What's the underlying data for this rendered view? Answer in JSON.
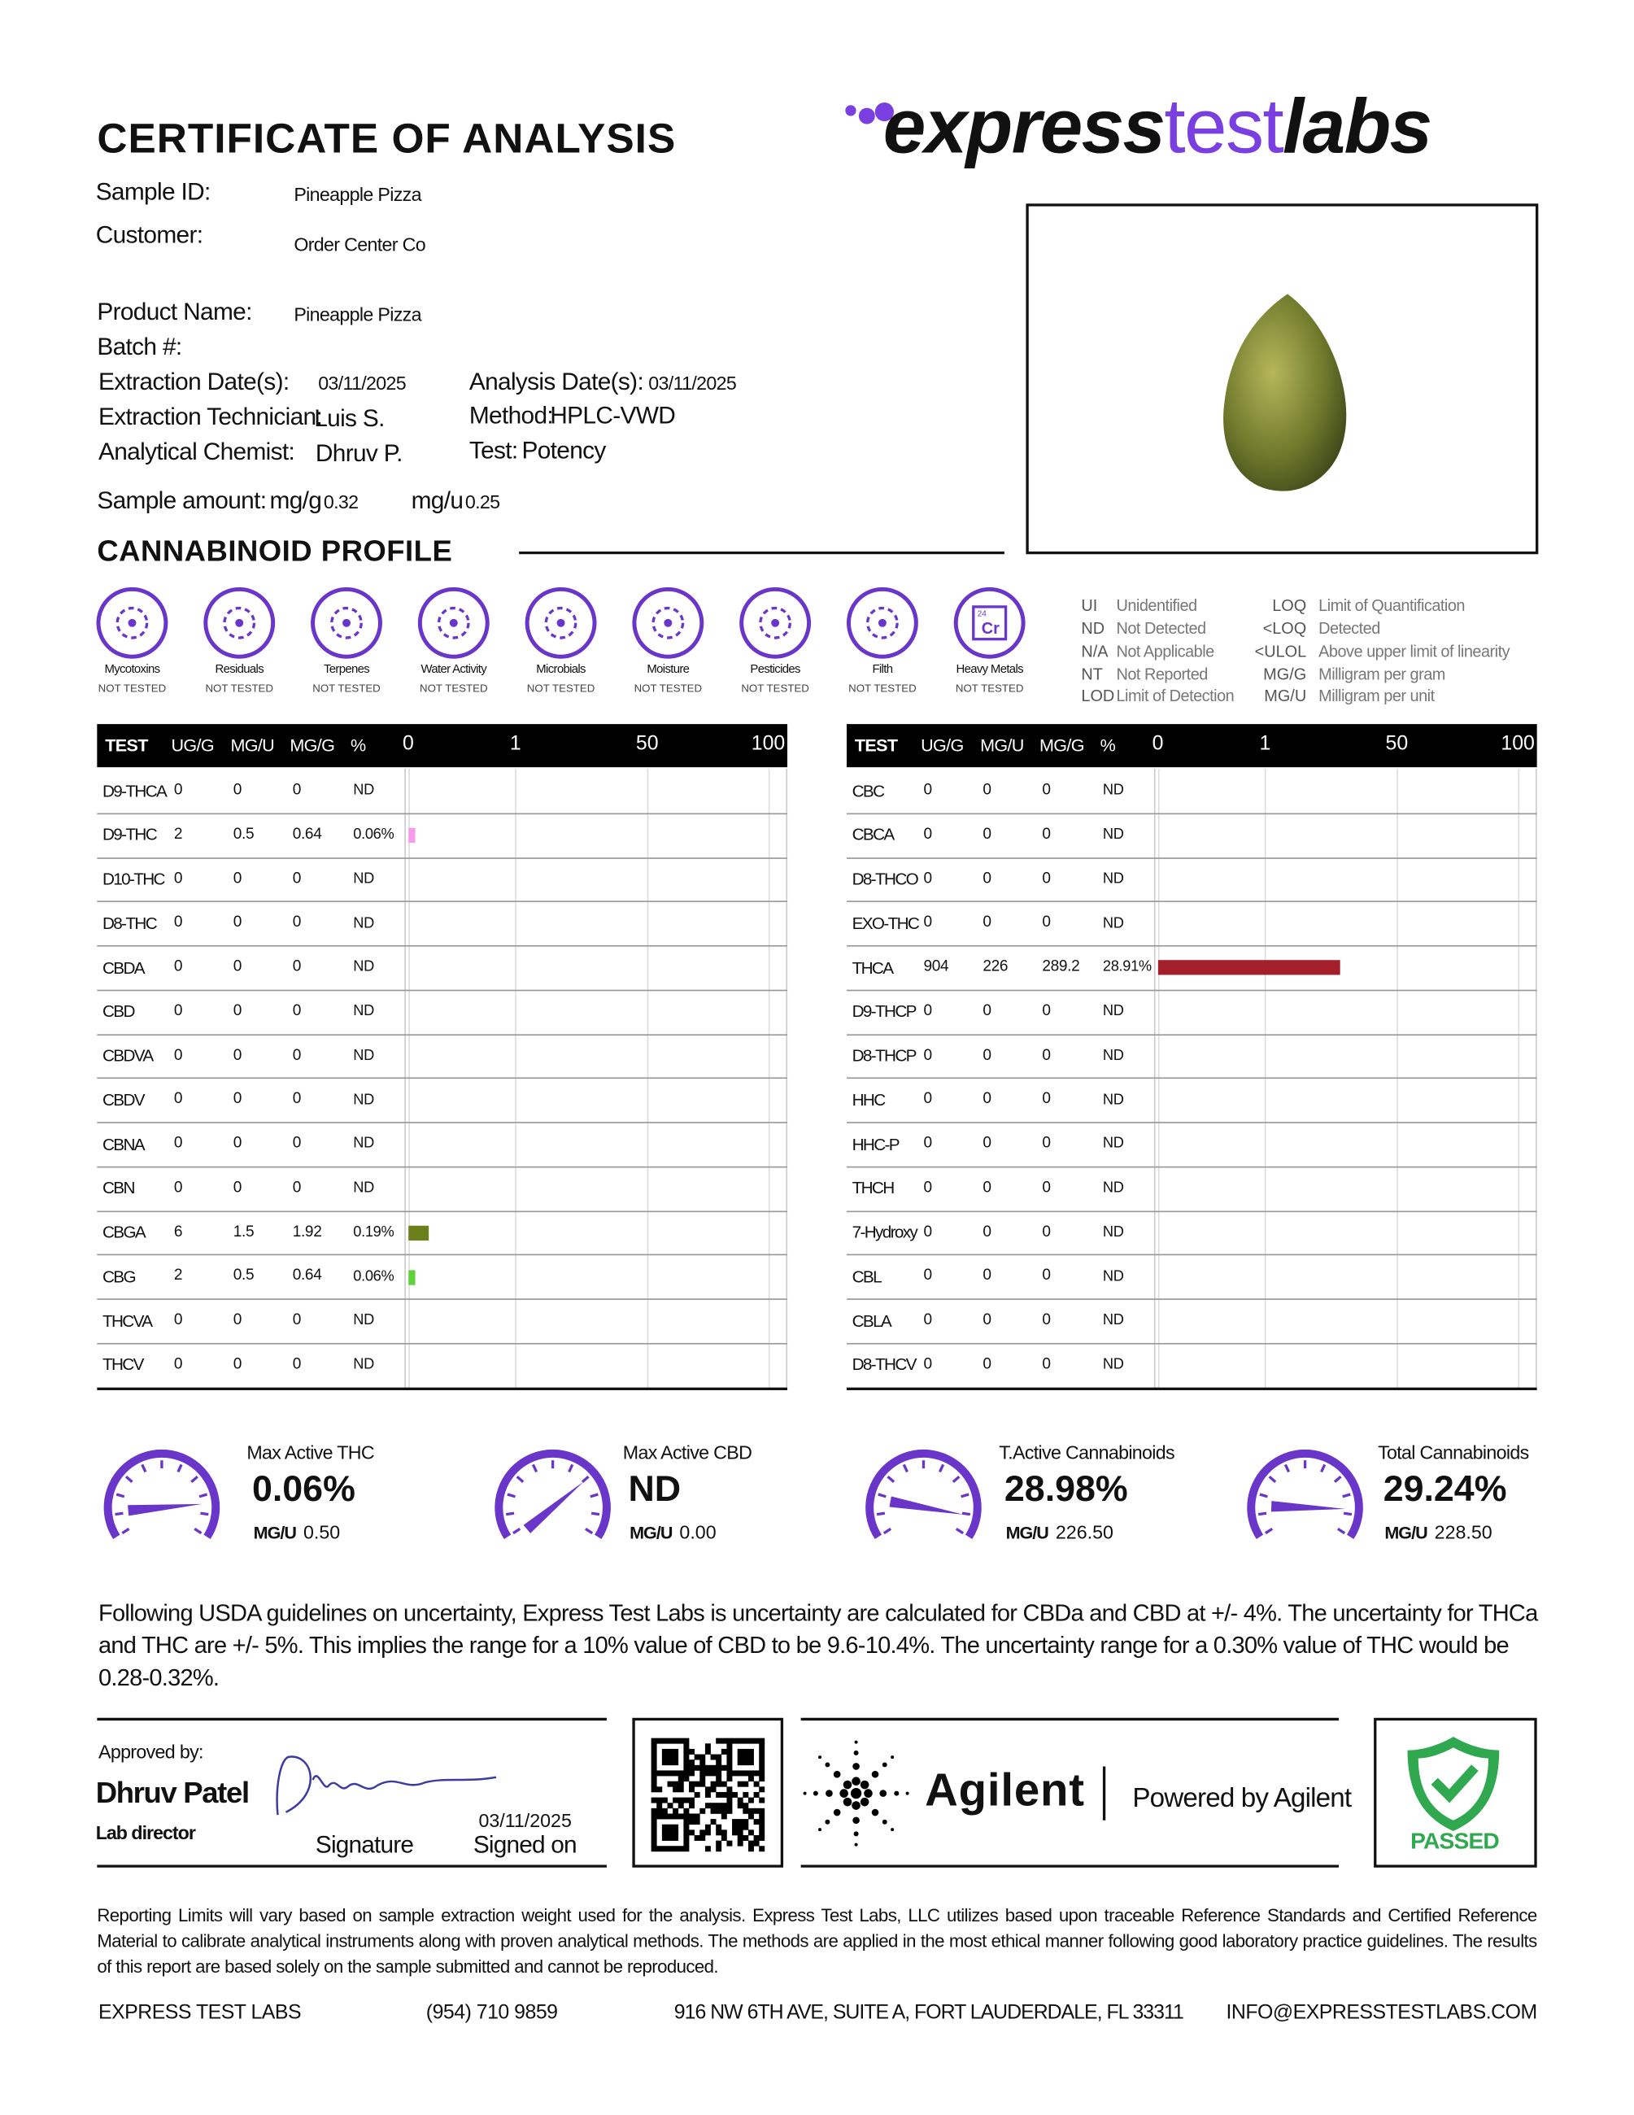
{
  "header": {
    "title": "CERTIFICATE OF ANALYSIS",
    "logo": {
      "part1": "express",
      "part2": "test",
      "part3": "labs"
    }
  },
  "sample": {
    "sample_id": {
      "label": "Sample ID:",
      "value": "Pineapple Pizza"
    },
    "customer": {
      "label": "Customer:",
      "value": "Order Center Co"
    },
    "product_name": {
      "label": "Product Name:",
      "value": "Pineapple Pizza"
    },
    "batch": {
      "label": "Batch #:"
    },
    "extraction_date": {
      "label": "Extraction Date(s):",
      "value": "03/11/2025"
    },
    "analysis_date": {
      "label": "Analysis Date(s):",
      "value": "03/11/2025"
    },
    "technician": {
      "label": "Extraction Technician:",
      "value": "Luis S."
    },
    "method": {
      "label": "Method:",
      "value": "HPLC-VWD"
    },
    "chemist": {
      "label": "Analytical Chemist:",
      "value": "Dhruv P."
    },
    "test": {
      "label": "Test:",
      "value": "Potency"
    },
    "amount": {
      "label": "Sample amount:",
      "mg_g_label": "mg/g",
      "mg_g": 0.32,
      "mg_u_label": "mg/u",
      "mg_u": 0.25
    }
  },
  "profile_title": "CANNABINOID PROFILE",
  "tests": [
    {
      "name": "Mycotoxins",
      "status": "NOT TESTED"
    },
    {
      "name": "Residuals",
      "status": "NOT TESTED"
    },
    {
      "name": "Terpenes",
      "status": "NOT TESTED"
    },
    {
      "name": "Water Activity",
      "status": "NOT TESTED"
    },
    {
      "name": "Microbials",
      "status": "NOT TESTED"
    },
    {
      "name": "Moisture",
      "status": "NOT TESTED"
    },
    {
      "name": "Pesticides",
      "status": "NOT TESTED"
    },
    {
      "name": "Filth",
      "status": "NOT TESTED"
    },
    {
      "name": "Heavy Metals",
      "status": "NOT TESTED",
      "symbol": "Cr",
      "number": "24"
    }
  ],
  "abbreviations": [
    [
      {
        "code": "UI",
        "meaning": "Unidentified"
      },
      {
        "code": "ND",
        "meaning": "Not Detected"
      },
      {
        "code": "N/A",
        "meaning": "Not Applicable"
      },
      {
        "code": "NT",
        "meaning": "Not Reported"
      },
      {
        "code": "LOD",
        "meaning": "Limit of Detection"
      }
    ],
    [
      {
        "code": "LOQ",
        "meaning": "Limit of Quantification"
      },
      {
        "code": "<LOQ",
        "meaning": "Detected"
      },
      {
        "code": "<ULOL",
        "meaning": "Above upper limit of linearity"
      },
      {
        "code": "MG/G",
        "meaning": "Milligram per gram"
      },
      {
        "code": "MG/U",
        "meaning": "Milligram per unit"
      }
    ]
  ],
  "tables": [
    {
      "columns": [
        "TEST",
        "UG/G",
        "MG/U",
        "MG/G",
        "%"
      ],
      "scale": [
        0,
        1,
        50,
        100
      ],
      "rows": [
        {
          "test": "D9-THCA",
          "ug_g": 0,
          "mg_u": 0,
          "mg_g": 0,
          "percent_label": "ND"
        },
        {
          "test": "D9-THC",
          "ug_g": 2,
          "mg_u": 0.5,
          "mg_g": 0.64,
          "percent": 0.06,
          "percent_label": "0.06%",
          "bar_color": "#f59bea"
        },
        {
          "test": "D10-THC",
          "ug_g": 0,
          "mg_u": 0,
          "mg_g": 0,
          "percent_label": "ND"
        },
        {
          "test": "D8-THC",
          "ug_g": 0,
          "mg_u": 0,
          "mg_g": 0,
          "percent_label": "ND"
        },
        {
          "test": "CBDA",
          "ug_g": 0,
          "mg_u": 0,
          "mg_g": 0,
          "percent_label": "ND"
        },
        {
          "test": "CBD",
          "ug_g": 0,
          "mg_u": 0,
          "mg_g": 0,
          "percent_label": "ND"
        },
        {
          "test": "CBDVA",
          "ug_g": 0,
          "mg_u": 0,
          "mg_g": 0,
          "percent_label": "ND"
        },
        {
          "test": "CBDV",
          "ug_g": 0,
          "mg_u": 0,
          "mg_g": 0,
          "percent_label": "ND"
        },
        {
          "test": "CBNA",
          "ug_g": 0,
          "mg_u": 0,
          "mg_g": 0,
          "percent_label": "ND"
        },
        {
          "test": "CBN",
          "ug_g": 0,
          "mg_u": 0,
          "mg_g": 0,
          "percent_label": "ND"
        },
        {
          "test": "CBGA",
          "ug_g": 6,
          "mg_u": 1.5,
          "mg_g": 1.92,
          "percent": 0.19,
          "percent_label": "0.19%",
          "bar_color": "#6b7f1a"
        },
        {
          "test": "CBG",
          "ug_g": 2,
          "mg_u": 0.5,
          "mg_g": 0.64,
          "percent": 0.06,
          "percent_label": "0.06%",
          "bar_color": "#5fd13a"
        },
        {
          "test": "THCVA",
          "ug_g": 0,
          "mg_u": 0,
          "mg_g": 0,
          "percent_label": "ND"
        },
        {
          "test": "THCV",
          "ug_g": 0,
          "mg_u": 0,
          "mg_g": 0,
          "percent_label": "ND"
        }
      ]
    },
    {
      "columns": [
        "TEST",
        "UG/G",
        "MG/U",
        "MG/G",
        "%"
      ],
      "scale": [
        0,
        1,
        50,
        100
      ],
      "rows": [
        {
          "test": "CBC",
          "ug_g": 0,
          "mg_u": 0,
          "mg_g": 0,
          "percent_label": "ND"
        },
        {
          "test": "CBCA",
          "ug_g": 0,
          "mg_u": 0,
          "mg_g": 0,
          "percent_label": "ND"
        },
        {
          "test": "D8-THCO",
          "ug_g": 0,
          "mg_u": 0,
          "mg_g": 0,
          "percent_label": "ND"
        },
        {
          "test": "EXO-THC",
          "ug_g": 0,
          "mg_u": 0,
          "mg_g": 0,
          "percent_label": "ND"
        },
        {
          "test": "THCA",
          "ug_g": 904,
          "mg_u": 226,
          "mg_g": 289.2,
          "percent": 28.91,
          "percent_label": "28.91%",
          "bar_color": "#a3202b"
        },
        {
          "test": "D9-THCP",
          "ug_g": 0,
          "mg_u": 0,
          "mg_g": 0,
          "percent_label": "ND"
        },
        {
          "test": "D8-THCP",
          "ug_g": 0,
          "mg_u": 0,
          "mg_g": 0,
          "percent_label": "ND"
        },
        {
          "test": "HHC",
          "ug_g": 0,
          "mg_u": 0,
          "mg_g": 0,
          "percent_label": "ND"
        },
        {
          "test": "HHC-P",
          "ug_g": 0,
          "mg_u": 0,
          "mg_g": 0,
          "percent_label": "ND"
        },
        {
          "test": "THCH",
          "ug_g": 0,
          "mg_u": 0,
          "mg_g": 0,
          "percent_label": "ND"
        },
        {
          "test": "7-Hydroxy",
          "ug_g": 0,
          "mg_u": 0,
          "mg_g": 0,
          "percent_label": "ND"
        },
        {
          "test": "CBL",
          "ug_g": 0,
          "mg_u": 0,
          "mg_g": 0,
          "percent_label": "ND"
        },
        {
          "test": "CBLA",
          "ug_g": 0,
          "mg_u": 0,
          "mg_g": 0,
          "percent_label": "ND"
        },
        {
          "test": "D8-THCV",
          "ug_g": 0,
          "mg_u": 0,
          "mg_g": 0,
          "percent_label": "ND"
        }
      ]
    }
  ],
  "gauges": [
    {
      "title": "Max Active THC",
      "value": "0.06%",
      "unit": "MG/U",
      "unit_value": "0.50"
    },
    {
      "title": "Max Active CBD",
      "value": "ND",
      "unit": "MG/U",
      "unit_value": "0.00"
    },
    {
      "title": "T.Active Cannabinoids",
      "value": "28.98%",
      "unit": "MG/U",
      "unit_value": "226.50"
    },
    {
      "title": "Total Cannabinoids",
      "value": "29.24%",
      "unit": "MG/U",
      "unit_value": "228.50"
    }
  ],
  "uncertainty": "Following USDA guidelines on uncertainty, Express Test Labs is uncertainty are calculated for CBDa and CBD at +/- 4%. The uncertainty for THCa and THC are +/- 5%. This implies the range for a 10% value of CBD to be 9.6-10.4%. The uncertainty range for a 0.30% value of THC would be 0.28-0.32%.",
  "approval": {
    "label": "Approved by:",
    "name": "Dhruv Patel",
    "role": "Lab director",
    "date": "03/11/2025",
    "signature_label": "Signature",
    "signed_on_label": "Signed on"
  },
  "partner": {
    "name": "Agilent",
    "powered_by": "Powered by Agilent"
  },
  "status": "PASSED",
  "disclaimer": "Reporting Limits will vary based on sample extraction weight used for the analysis. Express Test Labs, LLC utilizes based upon traceable Reference Standards and Certified Reference Material to calibrate analytical instruments along with proven analytical methods. The methods are applied in the most ethical manner following good laboratory practice guidelines. The results of this report are based solely on the sample submitted and cannot be reproduced.",
  "footer": {
    "company": "EXPRESS TEST LABS",
    "phone": "(954) 710 9859",
    "address": "916 NW 6TH AVE, SUITE A, FORT LAUDERDALE, FL 33311",
    "email": "INFO@EXPRESSTESTLABS.COM"
  }
}
